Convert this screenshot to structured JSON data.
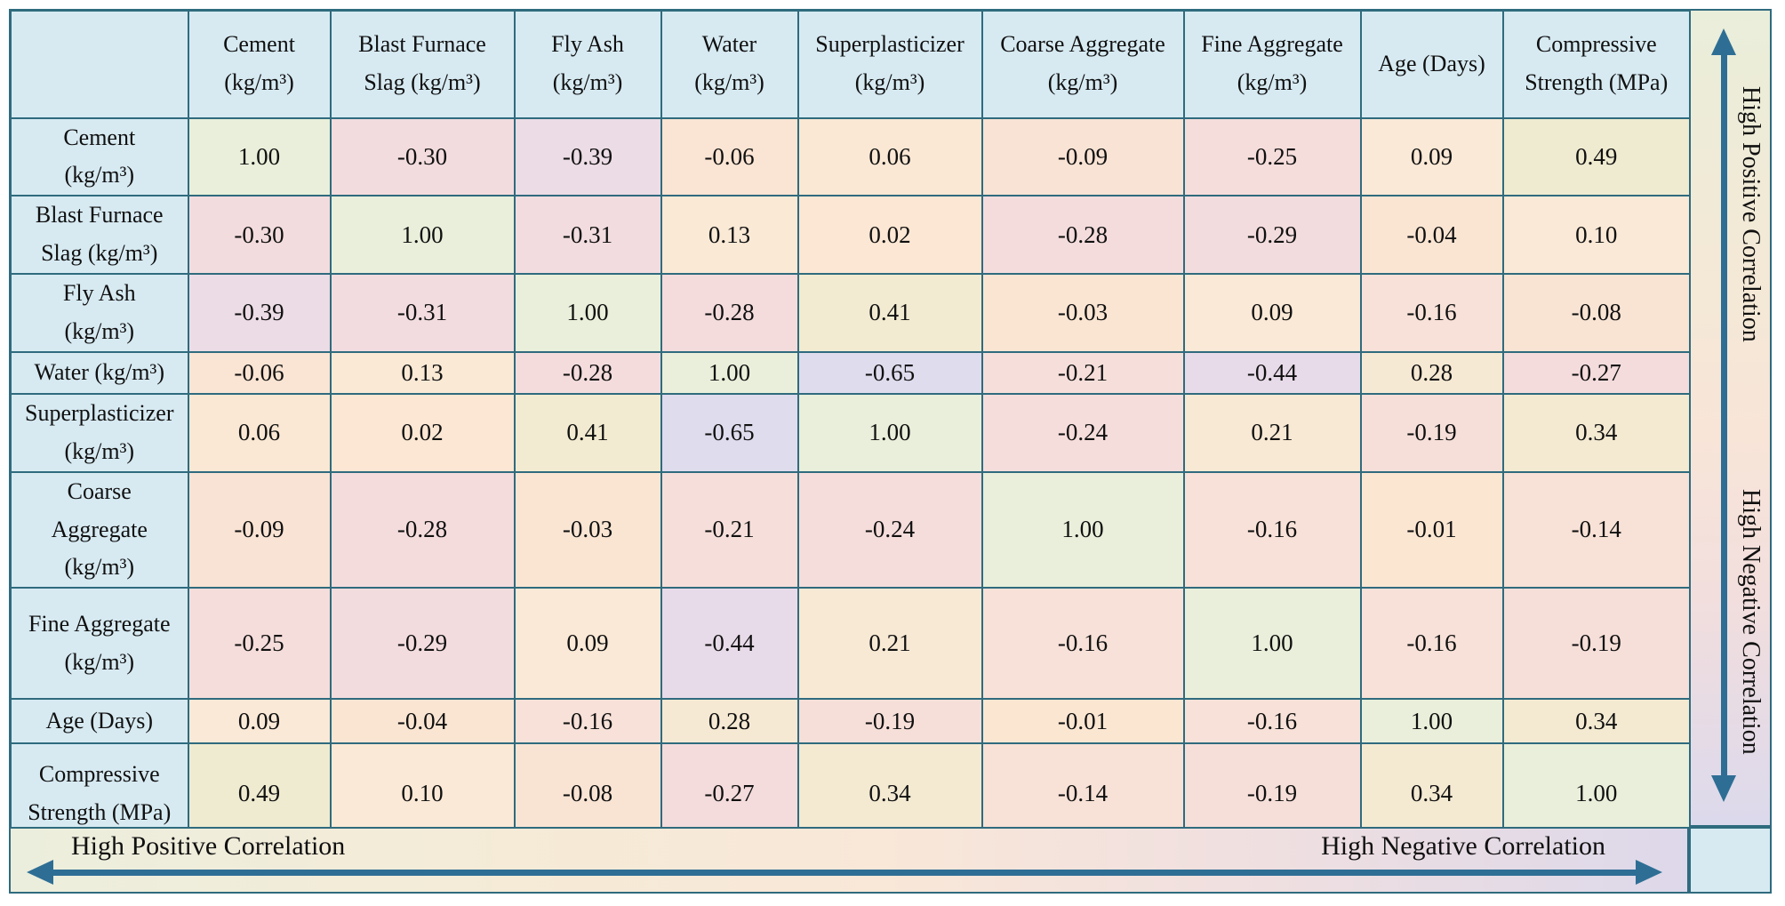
{
  "figure": {
    "type": "correlation-matrix",
    "col_headers": [
      [
        "Cement",
        "(kg/m³)"
      ],
      [
        "Blast Furnace",
        "Slag (kg/m³)"
      ],
      [
        "Fly Ash",
        "(kg/m³)"
      ],
      [
        "Water",
        "(kg/m³)"
      ],
      [
        "Superplasticizer",
        "(kg/m³)"
      ],
      [
        "Coarse Aggregate",
        "(kg/m³)"
      ],
      [
        "Fine Aggregate",
        "(kg/m³)"
      ],
      [
        "Age (Days)"
      ],
      [
        "Compressive",
        "Strength (MPa)"
      ]
    ],
    "row_labels": [
      [
        "Cement",
        "(kg/m³)"
      ],
      [
        "Blast Furnace",
        "Slag (kg/m³)"
      ],
      [
        "Fly Ash",
        "(kg/m³)"
      ],
      [
        "Water (kg/m³)"
      ],
      [
        "Superplasticizer",
        "(kg/m³)"
      ],
      [
        "Coarse",
        "Aggregate",
        "(kg/m³)"
      ],
      [
        "Fine Aggregate",
        "(kg/m³)"
      ],
      [
        "Age (Days)"
      ],
      [
        "Compressive",
        "Strength (MPa)"
      ]
    ]
  },
  "chart_data": {
    "type": "heatmap",
    "title": "",
    "categories": [
      "Cement (kg/m³)",
      "Blast Furnace Slag (kg/m³)",
      "Fly Ash (kg/m³)",
      "Water (kg/m³)",
      "Superplasticizer (kg/m³)",
      "Coarse Aggregate (kg/m³)",
      "Fine Aggregate (kg/m³)",
      "Age (Days)",
      "Compressive Strength (MPa)"
    ],
    "matrix": [
      [
        1.0,
        -0.3,
        -0.39,
        -0.06,
        0.06,
        -0.09,
        -0.25,
        0.09,
        0.49
      ],
      [
        -0.3,
        1.0,
        -0.31,
        0.13,
        0.02,
        -0.28,
        -0.29,
        -0.04,
        0.1
      ],
      [
        -0.39,
        -0.31,
        1.0,
        -0.28,
        0.41,
        -0.03,
        0.09,
        -0.16,
        -0.08
      ],
      [
        -0.06,
        0.13,
        -0.28,
        1.0,
        -0.65,
        -0.21,
        -0.44,
        0.28,
        -0.27
      ],
      [
        0.06,
        0.02,
        0.41,
        -0.65,
        1.0,
        -0.24,
        0.21,
        -0.19,
        0.34
      ],
      [
        -0.09,
        -0.28,
        -0.03,
        -0.21,
        -0.24,
        1.0,
        -0.16,
        -0.01,
        -0.14
      ],
      [
        -0.25,
        -0.29,
        0.09,
        -0.44,
        0.21,
        -0.16,
        1.0,
        -0.16,
        -0.19
      ],
      [
        0.09,
        -0.04,
        -0.16,
        0.28,
        -0.19,
        -0.01,
        -0.16,
        1.0,
        0.34
      ],
      [
        0.49,
        0.1,
        -0.08,
        -0.27,
        0.34,
        -0.14,
        -0.19,
        0.34,
        1.0
      ]
    ],
    "value_format": "0.00",
    "legend_position": "right-and-bottom",
    "colorbar_labels": [
      "High Positive Correlation",
      "High Negative Correlation"
    ]
  },
  "legend": {
    "right_top": "High Positive Correlation",
    "right_bottom": "High Negative Correlation",
    "bottom_left": "High Positive Correlation",
    "bottom_right": "High Negative Correlation"
  },
  "colors": {
    "header_bg": "#d7eaf2",
    "border": "#2f6b7e",
    "arrow": "#2e6e95",
    "text": "#101010",
    "colormap": [
      {
        "v": -0.7,
        "color": "#dcdaf0"
      },
      {
        "v": -0.65,
        "color": "#dfdcee"
      },
      {
        "v": -0.44,
        "color": "#e8dbe9"
      },
      {
        "v": -0.35,
        "color": "#f0dce2"
      },
      {
        "v": -0.27,
        "color": "#f4dcdc"
      },
      {
        "v": -0.2,
        "color": "#f6dfda"
      },
      {
        "v": -0.1,
        "color": "#f9e3d4"
      },
      {
        "v": 0.0,
        "color": "#fbe6d2"
      },
      {
        "v": 0.1,
        "color": "#fae9d6"
      },
      {
        "v": 0.25,
        "color": "#f7e9d3"
      },
      {
        "v": 0.4,
        "color": "#f2ebd1"
      },
      {
        "v": 0.55,
        "color": "#edebcf"
      },
      {
        "v": 1.0,
        "color": "#e9efda"
      }
    ]
  }
}
